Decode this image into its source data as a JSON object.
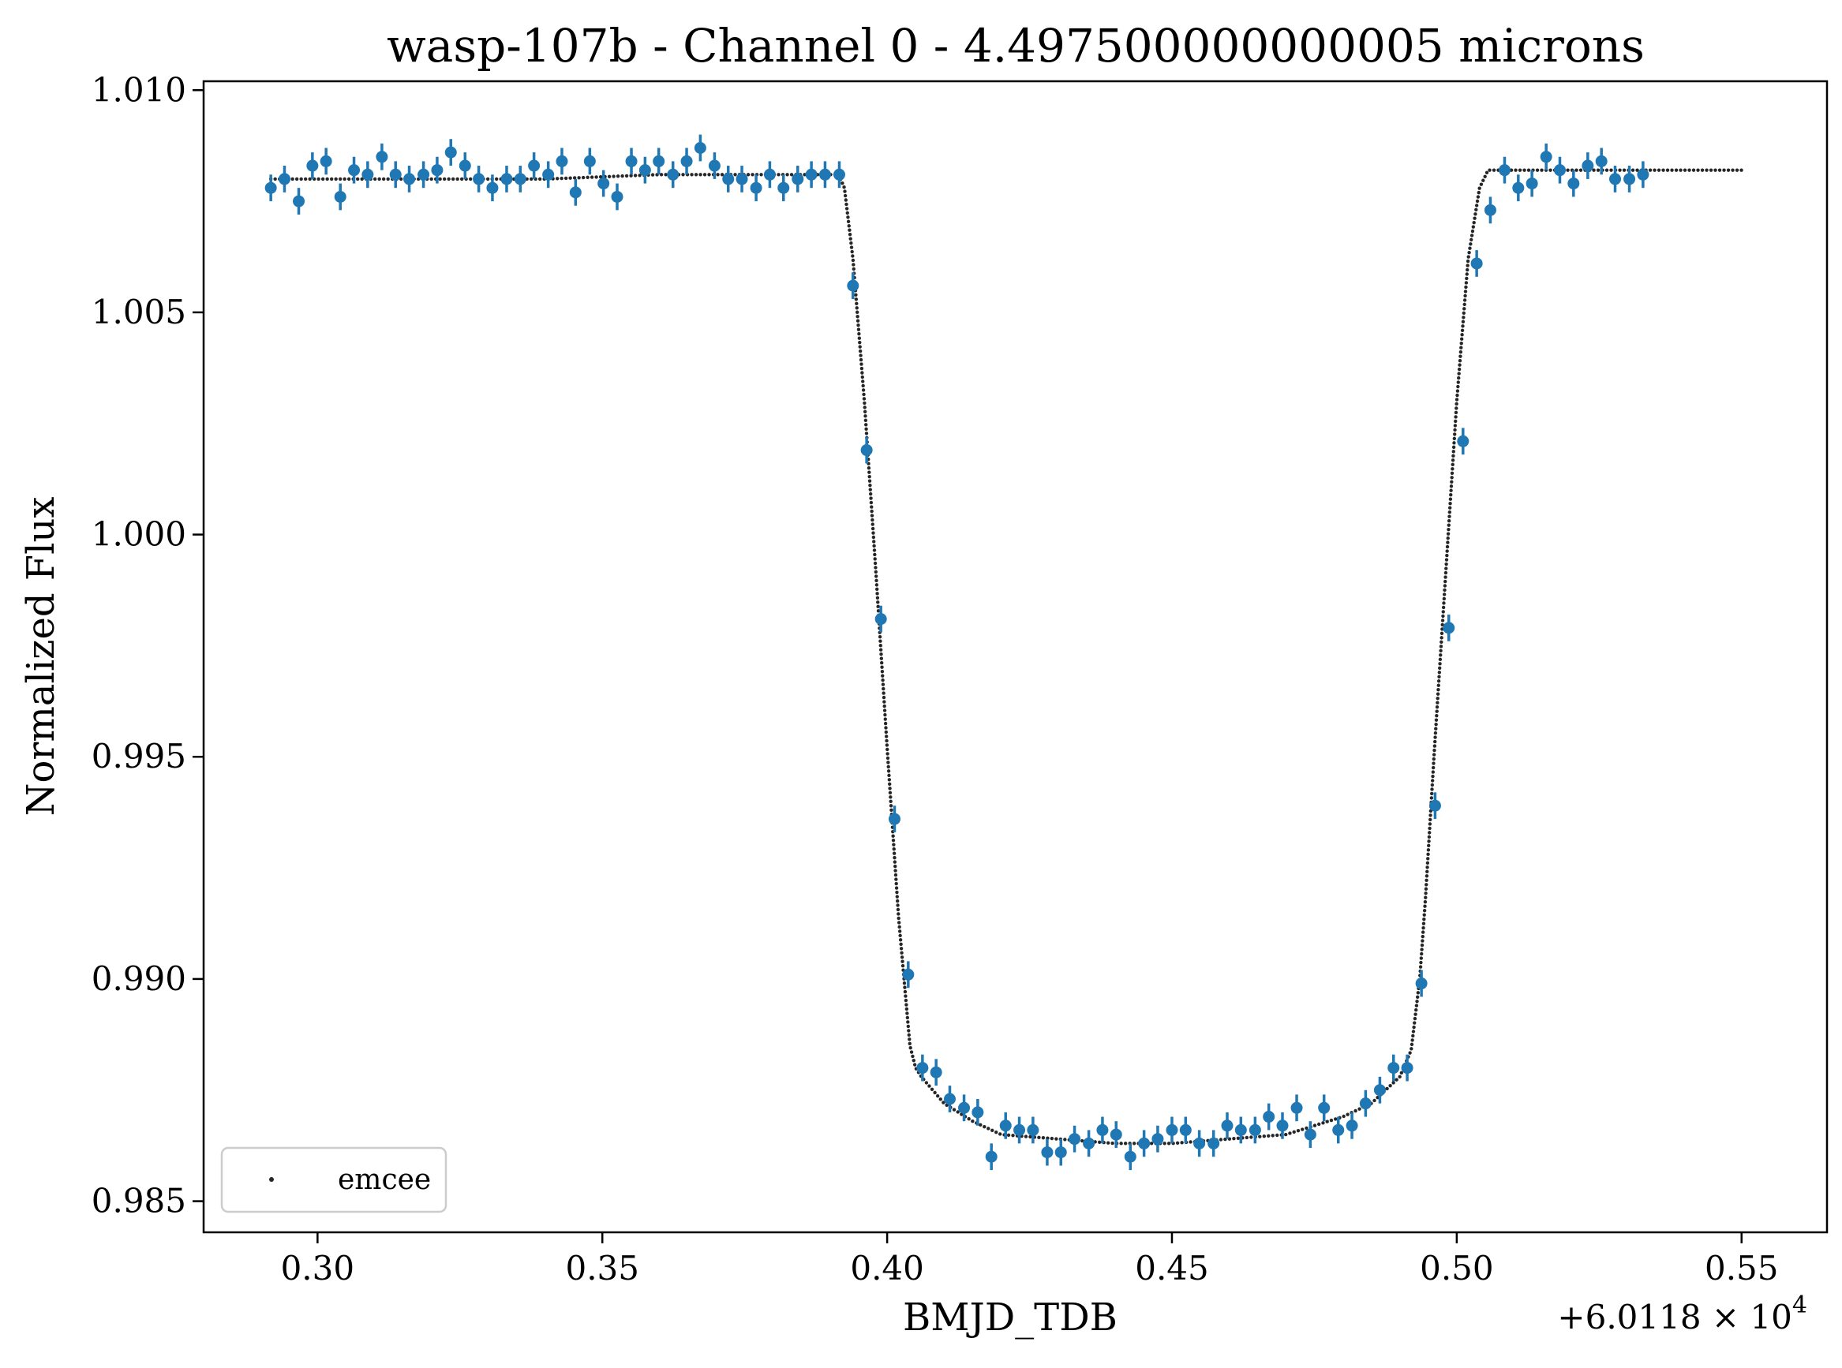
{
  "chart_data": {
    "type": "scatter",
    "title": "wasp-107b - Channel 0 - 4.497500000000005 microns",
    "xlabel": "BMJD_TDB",
    "ylabel": "Normalized Flux",
    "x_offset_label": "+6.0118 × 10",
    "x_offset_exponent": "4",
    "xlim": [
      0.28,
      0.565
    ],
    "ylim": [
      0.9843,
      1.0102
    ],
    "x_ticks": [
      0.3,
      0.35,
      0.4,
      0.45,
      0.5,
      0.55
    ],
    "x_tick_labels": [
      "0.30",
      "0.35",
      "0.40",
      "0.45",
      "0.50",
      "0.55"
    ],
    "y_ticks": [
      0.985,
      0.99,
      0.995,
      1.0,
      1.005,
      1.01
    ],
    "y_tick_labels": [
      "0.985",
      "0.990",
      "0.995",
      "1.000",
      "1.005",
      "1.010"
    ],
    "grid": false,
    "legend_position": "bottom-left",
    "legend": [
      {
        "label": "emcee",
        "marker": "small dot"
      }
    ],
    "colors": {
      "data": "#1f77b4",
      "model": "#262626"
    },
    "series": [
      {
        "kind": "data-with-errorbars",
        "x": [
          0.2918,
          0.2942,
          0.2967,
          0.2991,
          0.3015,
          0.304,
          0.3064,
          0.3088,
          0.3113,
          0.3137,
          0.3161,
          0.3186,
          0.321,
          0.3234,
          0.3259,
          0.3283,
          0.3307,
          0.3332,
          0.3356,
          0.338,
          0.3405,
          0.3429,
          0.3453,
          0.3478,
          0.3502,
          0.3526,
          0.3551,
          0.3575,
          0.3599,
          0.3624,
          0.3648,
          0.3672,
          0.3697,
          0.3721,
          0.3745,
          0.377,
          0.3794,
          0.3818,
          0.3843,
          0.3867,
          0.3891,
          0.3916,
          0.394,
          0.3964,
          0.3989,
          0.4013,
          0.4037,
          0.4062,
          0.4086,
          0.411,
          0.4135,
          0.4159,
          0.4183,
          0.4208,
          0.4232,
          0.4256,
          0.4281,
          0.4305,
          0.4329,
          0.4354,
          0.4378,
          0.4402,
          0.4427,
          0.4451,
          0.4475,
          0.45,
          0.4524,
          0.4548,
          0.4573,
          0.4597,
          0.4621,
          0.4646,
          0.467,
          0.4694,
          0.4719,
          0.4743,
          0.4767,
          0.4792,
          0.4816,
          0.484,
          0.4865,
          0.4889,
          0.4913,
          0.4938,
          0.4962,
          0.4986,
          0.5011,
          0.5035,
          0.5059,
          0.5084,
          0.5108,
          0.5132,
          0.5157,
          0.5181,
          0.5205,
          0.523,
          0.5254,
          0.5278,
          0.5303,
          0.5327
        ],
        "y": [
          1.0078,
          1.008,
          1.0075,
          1.0083,
          1.0084,
          1.0076,
          1.0082,
          1.0081,
          1.0085,
          1.0081,
          1.008,
          1.0081,
          1.0082,
          1.0086,
          1.0083,
          1.008,
          1.0078,
          1.008,
          1.008,
          1.0083,
          1.0081,
          1.0084,
          1.0077,
          1.0084,
          1.0079,
          1.0076,
          1.0084,
          1.0082,
          1.0084,
          1.0081,
          1.0084,
          1.0087,
          1.0083,
          1.008,
          1.008,
          1.0078,
          1.0081,
          1.0078,
          1.008,
          1.0081,
          1.0081,
          1.0081,
          1.0056,
          1.0019,
          0.9981,
          0.9936,
          0.9901,
          0.988,
          0.9879,
          0.9873,
          0.9871,
          0.987,
          0.986,
          0.9867,
          0.9866,
          0.9866,
          0.9861,
          0.9861,
          0.9864,
          0.9863,
          0.9866,
          0.9865,
          0.986,
          0.9863,
          0.9864,
          0.9866,
          0.9866,
          0.9863,
          0.9863,
          0.9867,
          0.9866,
          0.9866,
          0.9869,
          0.9867,
          0.9871,
          0.9865,
          0.9871,
          0.9866,
          0.9867,
          0.9872,
          0.9875,
          0.988,
          0.988,
          0.9899,
          0.9939,
          0.9979,
          1.0021,
          1.0061,
          1.0073,
          1.0082,
          1.0078,
          1.0079,
          1.0085,
          1.0082,
          1.0079,
          1.0083,
          1.0084,
          1.008,
          1.008,
          1.0081
        ],
        "yerr": 0.0003
      },
      {
        "kind": "model",
        "name": "emcee",
        "x": [
          0.2918,
          0.3,
          0.32,
          0.34,
          0.36,
          0.38,
          0.39,
          0.3915,
          0.3925,
          0.394,
          0.396,
          0.398,
          0.4,
          0.402,
          0.404,
          0.405,
          0.406,
          0.408,
          0.41,
          0.415,
          0.42,
          0.43,
          0.44,
          0.45,
          0.46,
          0.47,
          0.48,
          0.485,
          0.49,
          0.492,
          0.4935,
          0.4945,
          0.496,
          0.498,
          0.5,
          0.502,
          0.504,
          0.5055,
          0.5065,
          0.52,
          0.54,
          0.55
        ],
        "y": [
          1.008,
          1.008,
          1.008,
          1.008,
          1.0081,
          1.0081,
          1.0081,
          1.0081,
          1.0078,
          1.0062,
          1.003,
          0.9992,
          0.9952,
          0.9914,
          0.9885,
          0.988,
          0.9878,
          0.9875,
          0.9872,
          0.9868,
          0.9865,
          0.9864,
          0.9863,
          0.9863,
          0.9864,
          0.9865,
          0.9869,
          0.9872,
          0.9878,
          0.9884,
          0.99,
          0.9918,
          0.995,
          0.999,
          1.003,
          1.0062,
          1.0078,
          1.0082,
          1.0082,
          1.0082,
          1.0082,
          1.0082
        ]
      }
    ]
  }
}
